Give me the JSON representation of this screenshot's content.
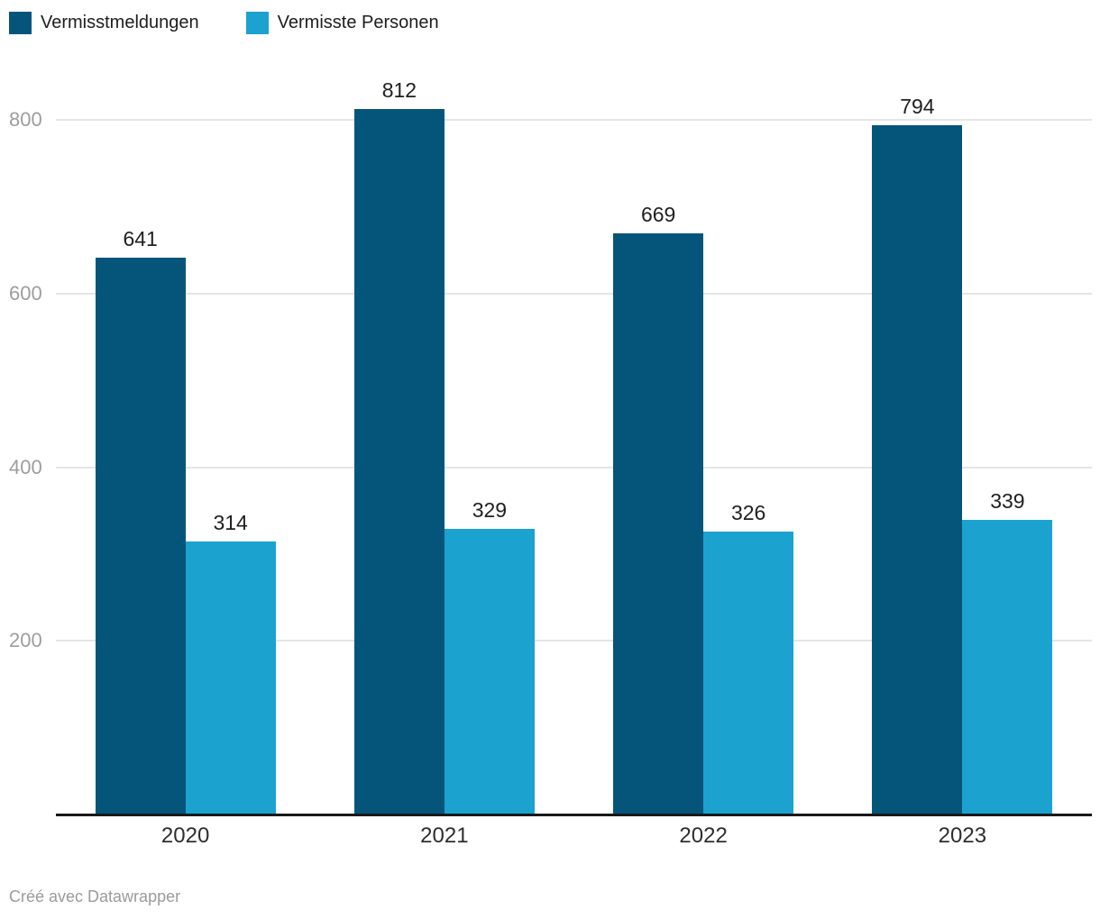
{
  "colors": {
    "series1": "#05557b",
    "series2": "#1ba2cf",
    "grid": "#e5e5e5",
    "axis": "#191919",
    "tick_label": "#9d9d9d",
    "value_label": "#1f1f1f"
  },
  "legend": {
    "items": [
      {
        "label": "Vermisstmeldungen",
        "color": "#05557b"
      },
      {
        "label": "Vermisste Personen",
        "color": "#1ba2cf"
      }
    ]
  },
  "chart_data": {
    "type": "bar",
    "categories": [
      "2020",
      "2021",
      "2022",
      "2023"
    ],
    "series": [
      {
        "name": "Vermisstmeldungen",
        "color": "#05557b",
        "values": [
          641,
          812,
          669,
          794
        ]
      },
      {
        "name": "Vermisste Personen",
        "color": "#1ba2cf",
        "values": [
          314,
          329,
          326,
          339
        ]
      }
    ],
    "title": "",
    "xlabel": "",
    "ylabel": "",
    "yticks": [
      200,
      400,
      600,
      800
    ],
    "ylim": [
      0,
      830
    ],
    "grid": true,
    "value_labels": true,
    "legend_position": "top-left"
  },
  "footer": {
    "credit": "Créé avec Datawrapper"
  }
}
